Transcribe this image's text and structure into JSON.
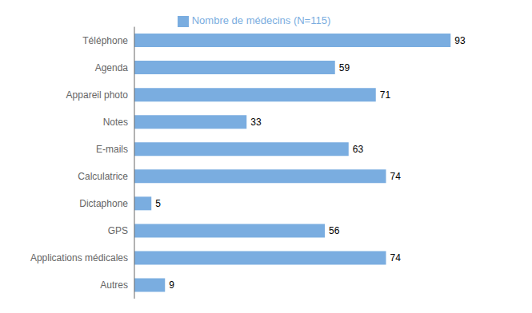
{
  "chart_data": {
    "type": "bar",
    "orientation": "horizontal",
    "categories": [
      "Téléphone",
      "Agenda",
      "Appareil photo",
      "Notes",
      "E-mails",
      "Calculatrice",
      "Dictaphone",
      "GPS",
      "Applications médicales",
      "Autres"
    ],
    "series": [
      {
        "name": "Nombre de médecins  (N=115)",
        "color": "#7aade0",
        "values": [
          93,
          59,
          71,
          33,
          63,
          74,
          5,
          56,
          74,
          9
        ]
      }
    ],
    "xlim": [
      0,
      108
    ],
    "data_labels": true,
    "tick_labels": "y",
    "grid": false,
    "legend": "top"
  }
}
